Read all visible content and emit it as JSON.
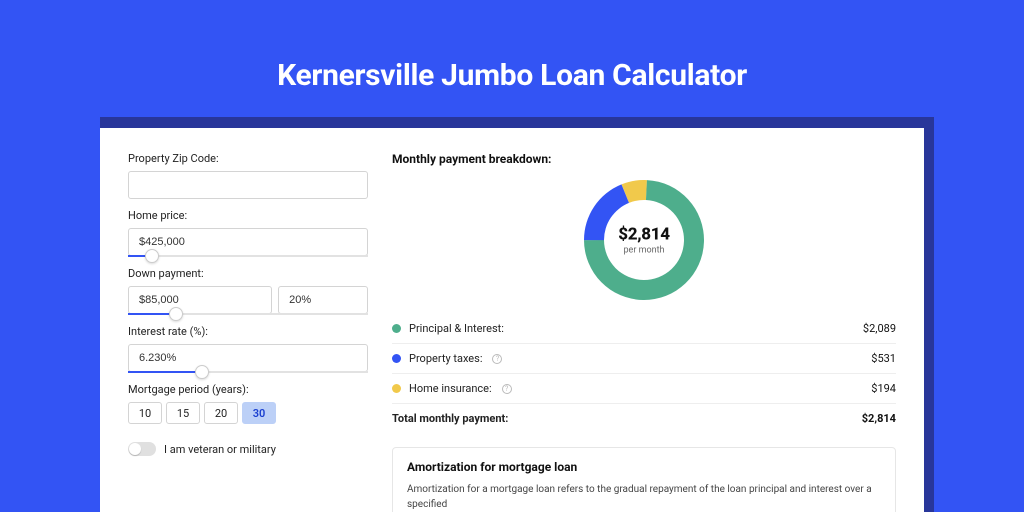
{
  "page_title": "Kernersville Jumbo Loan Calculator",
  "colors": {
    "outer_bg": "#3354f4",
    "shadow_bg": "#28369a",
    "card_bg": "#ffffff",
    "accent": "#3354f4"
  },
  "form": {
    "zip_label": "Property Zip Code:",
    "zip_value": "",
    "home_price_label": "Home price:",
    "home_price_value": "$425,000",
    "home_price_slider_pct": 10,
    "down_payment_label": "Down payment:",
    "down_payment_value": "$85,000",
    "down_payment_pct_value": "20%",
    "down_payment_slider_pct": 20,
    "interest_label": "Interest rate (%):",
    "interest_value": "6.230%",
    "interest_slider_pct": 31,
    "period_label": "Mortgage period (years):",
    "period_options": [
      "10",
      "15",
      "20",
      "30"
    ],
    "period_selected": "30",
    "veteran_label": "I am veteran or military",
    "veteran_on": false
  },
  "breakdown": {
    "title": "Monthly payment breakdown:",
    "donut": {
      "center_amount": "$2,814",
      "center_sub": "per month",
      "slices": [
        {
          "name": "home_ins",
          "color": "#f1c94b",
          "pct": 6.9,
          "start_deg": -22
        },
        {
          "name": "principal_interest",
          "color": "#4eae8c",
          "pct": 74.2,
          "start_deg": 2.8
        },
        {
          "name": "property_tax",
          "color": "#3354f4",
          "pct": 18.9,
          "start_deg": 269.9
        }
      ],
      "thickness": 20,
      "radius": 60
    },
    "items": [
      {
        "label": "Principal & Interest:",
        "value": "$2,089",
        "color": "#4eae8c",
        "info": false
      },
      {
        "label": "Property taxes:",
        "value": "$531",
        "color": "#3354f4",
        "info": true
      },
      {
        "label": "Home insurance:",
        "value": "$194",
        "color": "#f1c94b",
        "info": true
      }
    ],
    "total_label": "Total monthly payment:",
    "total_value": "$2,814"
  },
  "amortization": {
    "title": "Amortization for mortgage loan",
    "text": "Amortization for a mortgage loan refers to the gradual repayment of the loan principal and interest over a specified"
  }
}
